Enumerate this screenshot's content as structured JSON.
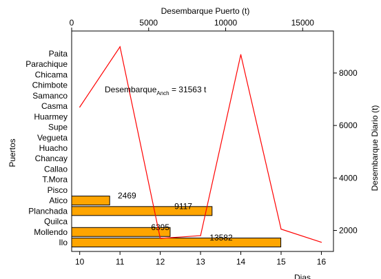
{
  "chart_data": {
    "type": "bar",
    "orientation": "horizontal",
    "colors": {
      "bar": "#FFA500",
      "bar_border": "#000000",
      "line": "#FF0000",
      "frame": "#000000"
    },
    "top_axis": {
      "label": "Desembarque Puerto (t)",
      "range": [
        0,
        17000
      ],
      "ticks": [
        0,
        5000,
        10000,
        15000
      ],
      "tick_labels": [
        "0",
        "5000",
        "10000",
        "15000"
      ]
    },
    "left_axis": {
      "label": "Puertos"
    },
    "categories": [
      "Paita",
      "Parachique",
      "Chicama",
      "Chimbote",
      "Samanco",
      "Casma",
      "Huarmey",
      "Supe",
      "Vegueta",
      "Huacho",
      "Chancay",
      "Callao",
      "T.Mora",
      "Pisco",
      "Atico",
      "Planchada",
      "Quilca",
      "Mollendo",
      "Ilo"
    ],
    "values": [
      null,
      null,
      null,
      null,
      null,
      null,
      null,
      null,
      null,
      null,
      null,
      null,
      null,
      null,
      2469,
      9117,
      null,
      6395,
      13582
    ],
    "bar_labels": [
      "",
      "",
      "",
      "",
      "",
      "",
      "",
      "",
      "",
      "",
      "",
      "",
      "",
      "",
      "2469",
      "9117",
      "",
      "6395",
      "13582"
    ],
    "bottom_axis": {
      "label": "Dias",
      "range": [
        9.8,
        16.3
      ],
      "ticks": [
        10,
        11,
        12,
        13,
        14,
        15,
        16
      ],
      "tick_labels": [
        "10",
        "11",
        "12",
        "13",
        "14",
        "15",
        "16"
      ]
    },
    "right_axis": {
      "label": "Desembarque Diario (t)",
      "range": [
        1200,
        9600
      ],
      "ticks": [
        2000,
        4000,
        6000,
        8000
      ],
      "tick_labels": [
        "2000",
        "4000",
        "6000",
        "8000"
      ]
    },
    "line_series": {
      "x": [
        10,
        11,
        12,
        13,
        14,
        15,
        16
      ],
      "y": [
        6700,
        9000,
        1700,
        1800,
        8700,
        2050,
        1550
      ]
    },
    "annotation": {
      "main": "Desembarque",
      "sub": "Anch",
      "tail": " = 31563 t"
    }
  }
}
